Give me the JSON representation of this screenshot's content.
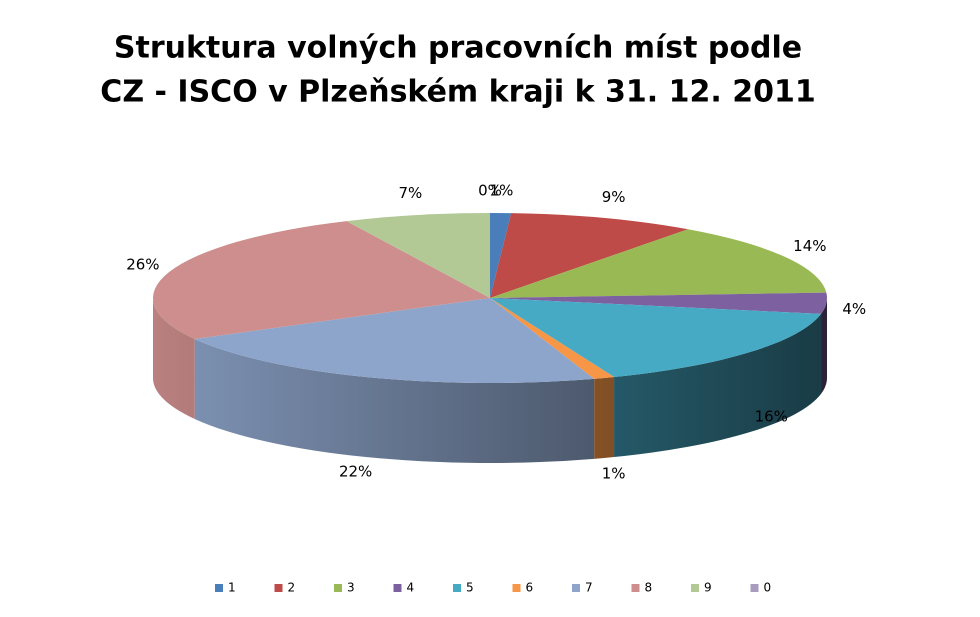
{
  "chart_data": {
    "type": "pie3d",
    "title": [
      "Struktura volných pracovních míst podle",
      "CZ - ISCO v Plzeňském kraji k 31. 12. 2011"
    ],
    "categories": [
      "1",
      "2",
      "3",
      "4",
      "5",
      "6",
      "7",
      "8",
      "9",
      "0"
    ],
    "values": [
      1,
      9,
      14,
      4,
      16,
      1,
      22,
      26,
      7,
      0
    ],
    "value_labels": [
      "1%",
      "9%",
      "14%",
      "4%",
      "16%",
      "1%",
      "22%",
      "26%",
      "7%",
      "0%"
    ],
    "colors": [
      "#4a7ebb",
      "#be4b48",
      "#98b954",
      "#7d60a0",
      "#46aac5",
      "#f79646",
      "#8ea5cb",
      "#cd8e8d",
      "#b2c996",
      "#a99bbd"
    ],
    "legend": "bottom"
  }
}
